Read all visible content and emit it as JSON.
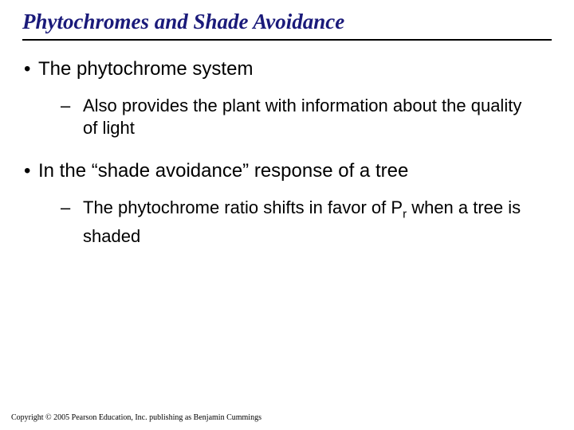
{
  "title": "Phytochromes and Shade Avoidance",
  "bullets": {
    "b1": "The phytochrome system",
    "s1": "Also provides the plant with information about the quality of light",
    "b2": "In the “shade avoidance” response of a tree",
    "s2a": "The phytochrome ratio shifts in favor of P",
    "s2sub": "r",
    "s2b": " when a tree is shaded"
  },
  "footer": "Copyright © 2005 Pearson Education, Inc. publishing as Benjamin Cummings"
}
